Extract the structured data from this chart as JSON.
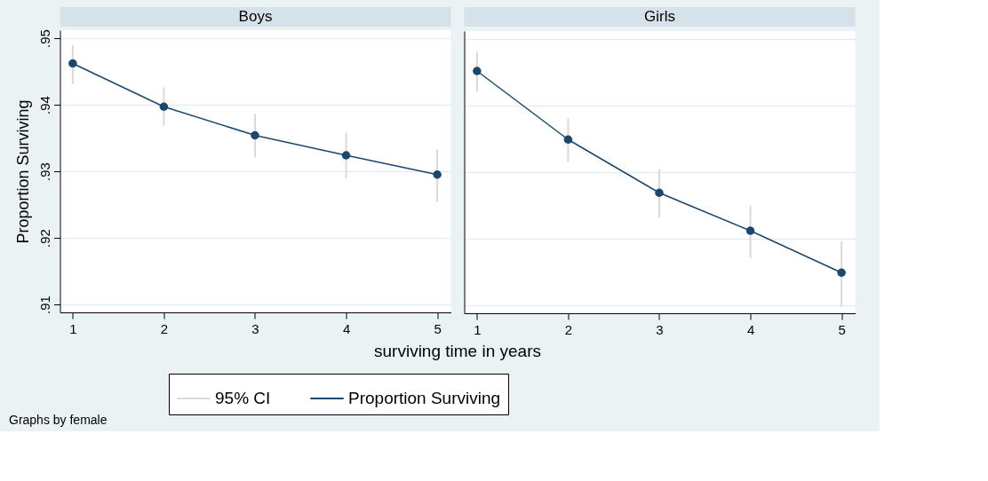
{
  "chart_data": [
    {
      "type": "line",
      "title": "Boys",
      "ylabel": "Proportion Surviving",
      "xlabel": "surviving time in years",
      "x": [
        1,
        2,
        3,
        4,
        5
      ],
      "xlim": [
        0.86,
        5.15
      ],
      "xticks": [
        1,
        2,
        3,
        4,
        5
      ],
      "ylim": [
        0.9088,
        0.9512
      ],
      "yticks": [
        {
          "value": 0.91,
          "label": ".91"
        },
        {
          "value": 0.92,
          "label": ".92"
        },
        {
          "value": 0.93,
          "label": ".93"
        },
        {
          "value": 0.94,
          "label": ".94"
        },
        {
          "value": 0.95,
          "label": ".95"
        }
      ],
      "grid": "y",
      "legend": "bottom",
      "marker": "circle",
      "annotations": [
        "95% CI",
        "Graphs by female"
      ],
      "series": [
        {
          "name": "Proportion Surviving",
          "type": "line",
          "color": "#1a476f",
          "values": [
            0.9462,
            0.9397,
            0.9354,
            0.9324,
            0.9295
          ],
          "errors": [
            [
              0.9431,
              0.949
            ],
            [
              0.9368,
              0.9426
            ],
            [
              0.9321,
              0.9386
            ],
            [
              0.929,
              0.9358
            ],
            [
              0.9254,
              0.9333
            ]
          ]
        }
      ]
    },
    {
      "type": "line",
      "title": "Girls",
      "x": [
        1,
        2,
        3,
        4,
        5
      ],
      "xlim": [
        0.86,
        5.15
      ],
      "xticks": [
        1,
        2,
        3,
        4,
        5
      ],
      "ylim": [
        0.9088,
        0.9512
      ],
      "yticks": [
        {
          "value": 0.91,
          "label": null
        },
        {
          "value": 0.92,
          "label": null
        },
        {
          "value": 0.93,
          "label": null
        },
        {
          "value": 0.94,
          "label": null
        },
        {
          "value": 0.95,
          "label": null
        }
      ],
      "tick_labels": "x",
      "grid": "y",
      "marker": "circle",
      "series": [
        {
          "type": "line",
          "color": "#1a476f",
          "values": [
            0.9452,
            0.9349,
            0.9269,
            0.9212,
            0.9149
          ],
          "errors": [
            [
              0.9421,
              0.9481
            ],
            [
              0.9315,
              0.9381
            ],
            [
              0.9232,
              0.9304
            ],
            [
              0.9171,
              0.925
            ],
            [
              0.9098,
              0.9196
            ]
          ]
        }
      ]
    }
  ]
}
